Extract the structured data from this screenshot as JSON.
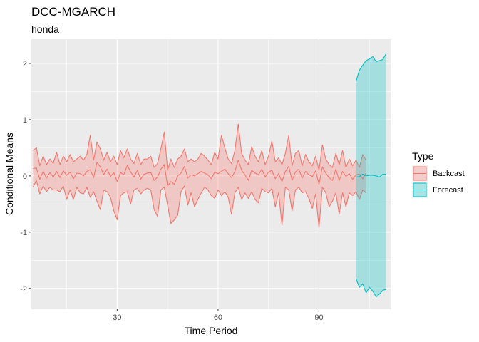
{
  "chart_data": {
    "type": "area",
    "title": "DCC-MGARCH",
    "subtitle": "honda",
    "xlabel": "Time Period",
    "ylabel": "Conditional Means",
    "xlim": [
      4.5,
      111.5
    ],
    "ylim": [
      -2.37,
      2.43
    ],
    "x_ticks": [
      30,
      60,
      90
    ],
    "y_ticks": [
      2,
      1,
      0,
      -1,
      -2
    ],
    "y_tick_labels": [
      "2",
      "1",
      "0",
      "-1",
      "-2"
    ],
    "grid": true,
    "legend": {
      "title": "Type",
      "position": "right",
      "entries": [
        "Backcast",
        "Forecast"
      ]
    },
    "series": [
      {
        "name": "Backcast",
        "color": "#F8766D",
        "x_start": 5,
        "mean": [
          0.13,
          0.14,
          -0.06,
          0.08,
          -0.04,
          0.06,
          -0.02,
          0.08,
          -0.03,
          0.09,
          0.01,
          0.07,
          -0.05,
          0.05,
          0.04,
          0.0,
          0.08,
          0.11,
          -0.03,
          0.24,
          0.16,
          0.02,
          0.12,
          -0.01,
          0.06,
          -0.1,
          0.06,
          0.02,
          0.19,
          0.07,
          -0.02,
          0.1,
          -0.06,
          0.03,
          0.05,
          0.06,
          -0.08,
          -0.02,
          0.12,
          0.2,
          -0.18,
          -0.1,
          -0.15,
          0.0,
          0.05,
          0.17,
          -0.04,
          0.02,
          0.0,
          0.04,
          0.08,
          0.05,
          0.02,
          -0.05,
          0.07,
          0.04,
          0.08,
          0.12,
          0.04,
          -0.03,
          0.08,
          0.28,
          0.1,
          0.02,
          -0.08,
          0.1,
          0.05,
          0.02,
          0.12,
          -0.02,
          0.07,
          0.1,
          -0.05,
          0.04,
          -0.1,
          0.08,
          0.17,
          -0.08,
          0.07,
          0.12,
          -0.04,
          0.08,
          0.02,
          -0.01,
          0.09,
          -0.15,
          0.16,
          0.05,
          -0.03,
          -0.08,
          0.12,
          -0.08,
          0.08,
          -0.01,
          0.04,
          -0.06,
          0.02,
          0.03,
          -0.05,
          0.05
        ],
        "upper": [
          0.45,
          0.5,
          0.18,
          0.35,
          0.2,
          0.3,
          0.22,
          0.42,
          0.2,
          0.35,
          0.25,
          0.38,
          0.25,
          0.3,
          0.35,
          0.28,
          0.38,
          0.72,
          0.28,
          0.6,
          0.48,
          0.28,
          0.42,
          0.25,
          0.35,
          0.2,
          0.45,
          0.32,
          0.48,
          0.3,
          0.22,
          0.4,
          0.2,
          0.3,
          0.3,
          0.35,
          0.15,
          0.22,
          0.48,
          0.78,
          0.1,
          0.3,
          0.15,
          0.3,
          0.35,
          0.48,
          0.25,
          0.3,
          0.25,
          0.3,
          0.4,
          0.35,
          0.28,
          0.2,
          0.42,
          0.3,
          0.72,
          0.5,
          0.3,
          0.22,
          0.45,
          0.92,
          0.4,
          0.28,
          0.2,
          0.52,
          0.35,
          0.25,
          0.45,
          0.2,
          0.35,
          0.62,
          0.25,
          0.32,
          0.2,
          0.4,
          0.72,
          0.18,
          0.4,
          0.45,
          0.18,
          0.38,
          0.25,
          0.18,
          0.35,
          0.1,
          0.55,
          0.3,
          0.2,
          0.15,
          0.4,
          0.2,
          0.45,
          0.15,
          0.3,
          0.18,
          0.28,
          0.15,
          0.38,
          0.28
        ],
        "lower": [
          -0.2,
          -0.08,
          -0.32,
          -0.18,
          -0.28,
          -0.2,
          -0.25,
          -0.25,
          -0.28,
          -0.18,
          -0.42,
          -0.25,
          -0.42,
          -0.2,
          -0.3,
          -0.32,
          -0.2,
          -0.38,
          -0.28,
          -0.45,
          -0.6,
          -0.25,
          -0.28,
          -0.38,
          -0.62,
          -0.78,
          -0.35,
          -0.3,
          -0.28,
          -0.5,
          -0.25,
          -0.22,
          -0.32,
          -0.25,
          -0.22,
          -0.25,
          -0.6,
          -0.72,
          -0.25,
          -0.2,
          -0.52,
          -0.85,
          -0.78,
          -0.7,
          -0.28,
          -0.18,
          -0.52,
          -0.3,
          -0.55,
          -0.42,
          -0.3,
          -0.2,
          -0.25,
          -0.35,
          -0.4,
          -0.25,
          -0.35,
          -0.28,
          -0.38,
          -0.68,
          -0.3,
          -0.2,
          -0.42,
          -0.3,
          -0.4,
          -0.28,
          -0.42,
          -0.48,
          -0.22,
          -0.28,
          -0.3,
          -0.22,
          -0.55,
          -0.3,
          -0.88,
          -0.2,
          -0.25,
          -0.62,
          -0.25,
          -0.2,
          -0.3,
          -0.28,
          -0.4,
          -0.58,
          -0.32,
          -0.92,
          -0.2,
          -0.3,
          -0.55,
          -0.45,
          -0.3,
          -0.68,
          -0.3,
          -0.55,
          -0.3,
          -0.35,
          -0.28,
          -0.42,
          -0.25,
          -0.3
        ]
      },
      {
        "name": "Forecast",
        "color": "#00BFC4",
        "x_start": 101,
        "mean": [
          -0.02,
          -0.01,
          0.03,
          0.0,
          0.01,
          0.01,
          0.0,
          -0.02,
          0.03,
          0.03
        ],
        "upper": [
          1.68,
          1.88,
          1.97,
          2.05,
          2.08,
          2.12,
          2.03,
          2.05,
          2.07,
          2.18
        ],
        "lower": [
          -1.83,
          -1.98,
          -1.92,
          -2.08,
          -1.98,
          -2.05,
          -2.15,
          -2.1,
          -2.03,
          -2.02
        ]
      }
    ]
  }
}
